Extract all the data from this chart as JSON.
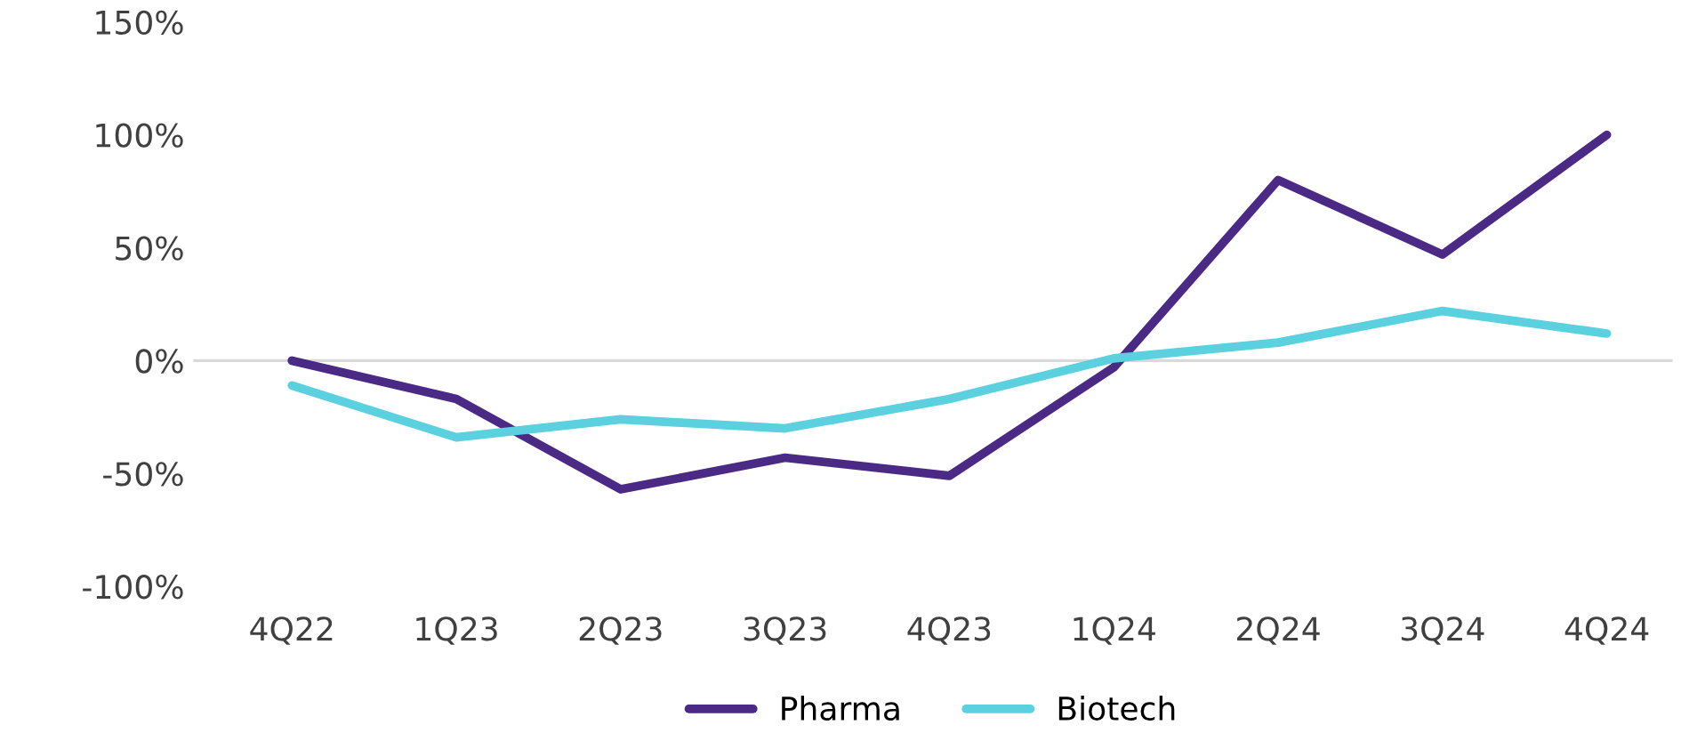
{
  "chart_data": {
    "type": "line",
    "categories": [
      "4Q22",
      "1Q23",
      "2Q23",
      "3Q23",
      "4Q23",
      "1Q24",
      "2Q24",
      "3Q24",
      "4Q24"
    ],
    "series": [
      {
        "name": "Pharma",
        "color": "#4b2a86",
        "values": [
          0,
          -17,
          -57,
          -43,
          -51,
          -3,
          80,
          47,
          100
        ]
      },
      {
        "name": "Biotech",
        "color": "#5bd0df",
        "values": [
          -11,
          -34,
          -26,
          -30,
          -17,
          1,
          8,
          22,
          12
        ]
      }
    ],
    "ylim": [
      -100,
      150
    ],
    "yticks": [
      {
        "value": -100,
        "label": "-100%"
      },
      {
        "value": -50,
        "label": "-50%"
      },
      {
        "value": 0,
        "label": "0%"
      },
      {
        "value": 50,
        "label": "50%"
      },
      {
        "value": 100,
        "label": "100%"
      },
      {
        "value": 150,
        "label": "150%"
      }
    ],
    "ref_lines": [
      {
        "axis": "y",
        "value": 0,
        "color": "#d9d9d9"
      }
    ],
    "grid": false,
    "legend": "bottom",
    "marker": "none",
    "line_style": "solid"
  }
}
